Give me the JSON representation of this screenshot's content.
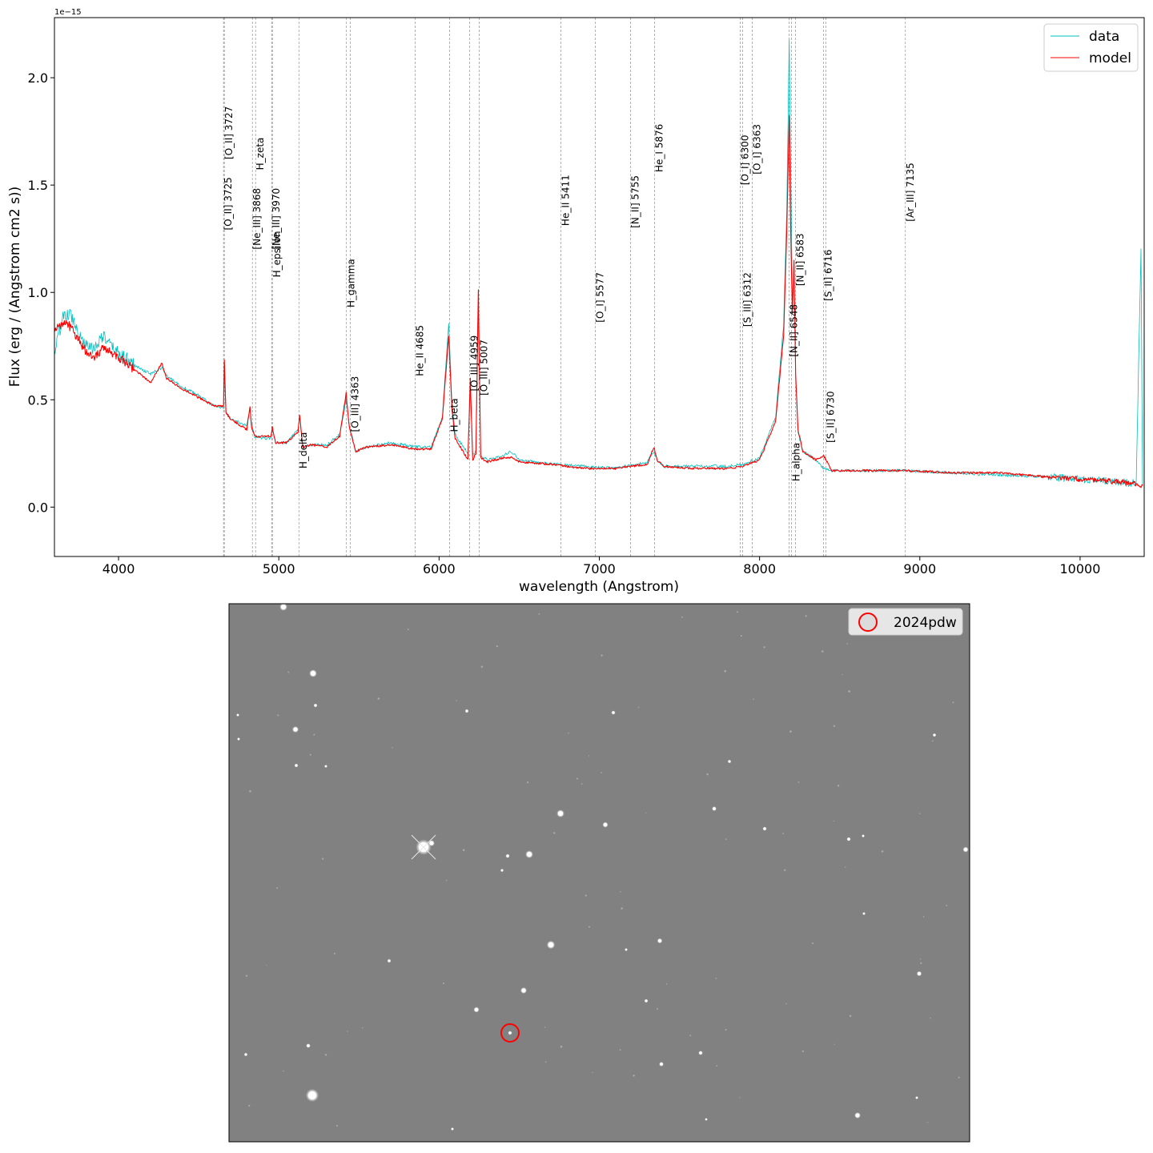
{
  "chart_data": [
    {
      "type": "line",
      "title": "",
      "xlabel": "wavelength (Angstrom)",
      "ylabel": "Flux (erg / (Angstrom cm2 s))",
      "y_offset_label": "1e−15",
      "y_scale": 1e-15,
      "xlim": [
        3600,
        10400
      ],
      "ylim": [
        -0.23,
        2.28
      ],
      "x_ticks": [
        4000,
        5000,
        6000,
        7000,
        8000,
        9000,
        10000
      ],
      "x_tick_labels": [
        "4000",
        "5000",
        "6000",
        "7000",
        "8000",
        "9000",
        "10000"
      ],
      "y_ticks": [
        0.0,
        0.5,
        1.0,
        1.5,
        2.0
      ],
      "y_tick_labels": [
        "0.0",
        "0.5",
        "1.0",
        "1.5",
        "2.0"
      ],
      "grid": false,
      "legend": {
        "position": "top-right"
      },
      "series": [
        {
          "name": "data",
          "color": "#00bfbf",
          "x": [
            3600,
            3650,
            3700,
            3750,
            3800,
            3850,
            3900,
            3950,
            4000,
            4100,
            4200,
            4270,
            4300,
            4400,
            4500,
            4600,
            4655,
            4660,
            4670,
            4700,
            4800,
            4820,
            4830,
            4850,
            4900,
            4950,
            4960,
            4980,
            5050,
            5120,
            5130,
            5150,
            5200,
            5300,
            5380,
            5420,
            5440,
            5480,
            5550,
            5700,
            5850,
            5950,
            6020,
            6060,
            6080,
            6100,
            6150,
            6180,
            6195,
            6210,
            6230,
            6245,
            6260,
            6300,
            6400,
            6450,
            6500,
            6700,
            6900,
            7100,
            7300,
            7340,
            7360,
            7400,
            7600,
            7800,
            7900,
            8000,
            8100,
            8150,
            8170,
            8185,
            8195,
            8205,
            8215,
            8225,
            8240,
            8270,
            8350,
            8400,
            8450,
            8600,
            8900,
            9200,
            9500,
            9800,
            10000,
            10200,
            10350,
            10380,
            10390
          ],
          "y": [
            0.72,
            0.88,
            0.9,
            0.82,
            0.75,
            0.74,
            0.8,
            0.75,
            0.72,
            0.66,
            0.62,
            0.65,
            0.61,
            0.56,
            0.52,
            0.47,
            0.46,
            0.67,
            0.44,
            0.41,
            0.38,
            0.46,
            0.39,
            0.33,
            0.32,
            0.32,
            0.36,
            0.3,
            0.3,
            0.36,
            0.42,
            0.28,
            0.29,
            0.29,
            0.34,
            0.5,
            0.38,
            0.26,
            0.28,
            0.3,
            0.28,
            0.28,
            0.42,
            0.86,
            0.48,
            0.34,
            0.28,
            0.25,
            0.55,
            0.24,
            0.26,
            0.92,
            0.24,
            0.22,
            0.24,
            0.26,
            0.22,
            0.2,
            0.19,
            0.18,
            0.21,
            0.26,
            0.22,
            0.19,
            0.19,
            0.19,
            0.2,
            0.23,
            0.42,
            0.85,
            1.4,
            2.18,
            1.5,
            0.95,
            1.1,
            0.6,
            0.35,
            0.26,
            0.22,
            0.18,
            0.17,
            0.17,
            0.17,
            0.16,
            0.15,
            0.14,
            0.13,
            0.12,
            0.11,
            1.2,
            0.1
          ]
        },
        {
          "name": "model",
          "color": "#ff0000",
          "x": [
            3600,
            3650,
            3700,
            3750,
            3800,
            3850,
            3900,
            3950,
            4000,
            4100,
            4200,
            4270,
            4300,
            4400,
            4500,
            4600,
            4655,
            4660,
            4670,
            4700,
            4800,
            4820,
            4830,
            4850,
            4900,
            4950,
            4960,
            4980,
            5050,
            5120,
            5130,
            5150,
            5200,
            5300,
            5380,
            5420,
            5440,
            5480,
            5550,
            5700,
            5850,
            5950,
            6020,
            6060,
            6080,
            6100,
            6150,
            6180,
            6195,
            6210,
            6230,
            6245,
            6260,
            6300,
            6400,
            6450,
            6500,
            6700,
            6900,
            7100,
            7300,
            7340,
            7360,
            7400,
            7600,
            7800,
            7900,
            8000,
            8100,
            8150,
            8170,
            8185,
            8195,
            8205,
            8215,
            8225,
            8240,
            8270,
            8350,
            8400,
            8450,
            8600,
            8900,
            9200,
            9500,
            9800,
            10000,
            10200,
            10350,
            10380,
            10390
          ],
          "y": [
            0.82,
            0.86,
            0.84,
            0.78,
            0.72,
            0.7,
            0.74,
            0.72,
            0.7,
            0.64,
            0.58,
            0.67,
            0.6,
            0.55,
            0.51,
            0.47,
            0.47,
            0.69,
            0.44,
            0.41,
            0.36,
            0.47,
            0.37,
            0.33,
            0.33,
            0.33,
            0.37,
            0.3,
            0.3,
            0.35,
            0.43,
            0.28,
            0.29,
            0.28,
            0.33,
            0.53,
            0.37,
            0.26,
            0.28,
            0.29,
            0.27,
            0.27,
            0.41,
            0.8,
            0.46,
            0.32,
            0.26,
            0.22,
            0.6,
            0.22,
            0.25,
            1.01,
            0.23,
            0.21,
            0.23,
            0.23,
            0.21,
            0.2,
            0.18,
            0.18,
            0.2,
            0.28,
            0.22,
            0.19,
            0.18,
            0.18,
            0.19,
            0.22,
            0.4,
            0.8,
            1.3,
            1.82,
            1.25,
            0.9,
            1.15,
            0.62,
            0.36,
            0.26,
            0.22,
            0.24,
            0.17,
            0.17,
            0.17,
            0.16,
            0.16,
            0.14,
            0.13,
            0.12,
            0.11,
            0.09,
            0.1
          ]
        }
      ],
      "annotations": [
        {
          "label": "[O_II] 3725",
          "x": 4655,
          "label_y": 1.29
        },
        {
          "label": "[O_II] 3727",
          "x": 4660,
          "label_y": 1.62
        },
        {
          "label": "[Ne_III] 3868",
          "x": 4835,
          "label_y": 1.2
        },
        {
          "label": "H_zeta",
          "x": 4855,
          "label_y": 1.57
        },
        {
          "label": "[Ne_III] 3970",
          "x": 4955,
          "label_y": 1.2
        },
        {
          "label": "H_epsilon",
          "x": 4960,
          "label_y": 1.07
        },
        {
          "label": "H_delta",
          "x": 5125,
          "label_y": 0.18
        },
        {
          "label": "H_gamma",
          "x": 5420,
          "label_y": 0.93
        },
        {
          "label": "[O_III] 4363",
          "x": 5445,
          "label_y": 0.35
        },
        {
          "label": "He_II 4685",
          "x": 5850,
          "label_y": 0.61
        },
        {
          "label": "H_beta",
          "x": 6065,
          "label_y": 0.35
        },
        {
          "label": "[O_III] 4959",
          "x": 6190,
          "label_y": 0.54
        },
        {
          "label": "[O_III] 5007",
          "x": 6250,
          "label_y": 0.52
        },
        {
          "label": "He_II 5411",
          "x": 6760,
          "label_y": 1.31
        },
        {
          "label": "[O_I] 5577",
          "x": 6975,
          "label_y": 0.86
        },
        {
          "label": "[N_II] 5755",
          "x": 7195,
          "label_y": 1.3
        },
        {
          "label": "He_I 5876",
          "x": 7345,
          "label_y": 1.56
        },
        {
          "label": "[O_I] 6300",
          "x": 7880,
          "label_y": 1.5
        },
        {
          "label": "[S_III] 6312",
          "x": 7895,
          "label_y": 0.84
        },
        {
          "label": "[O_I] 6363",
          "x": 7955,
          "label_y": 1.55
        },
        {
          "label": "[N_II] 6548",
          "x": 8185,
          "label_y": 0.7
        },
        {
          "label": "H_alpha",
          "x": 8200,
          "label_y": 0.12
        },
        {
          "label": "[N_II] 6583",
          "x": 8225,
          "label_y": 1.03
        },
        {
          "label": "[S_II] 6716",
          "x": 8400,
          "label_y": 0.96
        },
        {
          "label": "[S_II] 6730",
          "x": 8415,
          "label_y": 0.3
        },
        {
          "label": "[Ar_III] 7135",
          "x": 8910,
          "label_y": 1.33
        }
      ]
    },
    {
      "type": "image",
      "title": "",
      "legend": {
        "position": "top-right"
      },
      "series": [
        {
          "name": "2024pdw",
          "marker": "circle",
          "color": "#ff0000"
        }
      ]
    }
  ]
}
